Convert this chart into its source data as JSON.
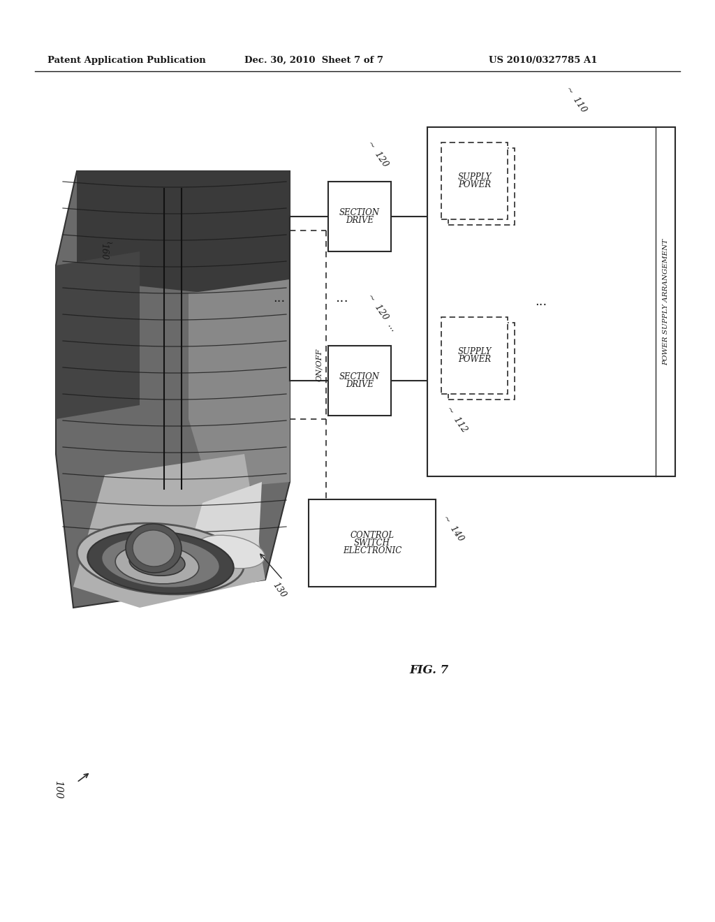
{
  "bg_color": "#ffffff",
  "text_color": "#1a1a1a",
  "line_color": "#2a2a2a",
  "header_left": "Patent Application Publication",
  "header_mid": "Dec. 30, 2010  Sheet 7 of 7",
  "header_right": "US 2010/0327785 A1",
  "fig_label": "FIG. 7",
  "lbl_100": "100",
  "lbl_110": "110",
  "lbl_112": "112",
  "lbl_120a": "120",
  "lbl_120b": "120",
  "lbl_130": "130",
  "lbl_140": "140",
  "lbl_160": "160",
  "lbl_onoff": "ON/OFF",
  "drive_text": [
    "DRIVE",
    "SECTION"
  ],
  "esc_text": [
    "ELECTRONIC",
    "SWITCH",
    "CONTROL"
  ],
  "psa_label": "POWER SUPPLY ARRANGEMENT",
  "ps_text": [
    "POWER",
    "SUPPLY"
  ],
  "dots": "..."
}
